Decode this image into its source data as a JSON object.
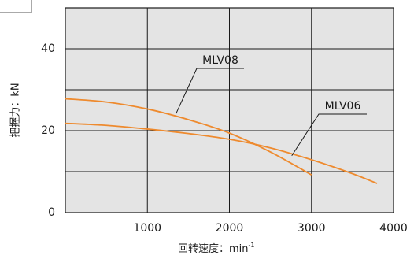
{
  "chart_data": {
    "type": "line",
    "xlabel": "回转速度：min",
    "xlabel_sup": "-1",
    "ylabel": "把握力：kN",
    "xlim": [
      0,
      4000
    ],
    "ylim": [
      0,
      50
    ],
    "x_ticks": [
      1000,
      2000,
      3000,
      4000
    ],
    "y_ticks": [
      0,
      20,
      40
    ],
    "grid": true,
    "plot_background": "#e4e4e4",
    "line_color": "#ee8a2e",
    "series": [
      {
        "name": "MLV08",
        "x": [
          0,
          500,
          1000,
          1500,
          2000,
          2500,
          3000
        ],
        "y": [
          27.8,
          27.0,
          25.3,
          22.7,
          19.4,
          14.8,
          9.2
        ]
      },
      {
        "name": "MLV06",
        "x": [
          0,
          500,
          1000,
          1500,
          2000,
          2500,
          3000,
          3500,
          3800
        ],
        "y": [
          21.8,
          21.3,
          20.4,
          19.3,
          17.9,
          15.8,
          12.9,
          9.5,
          7.1
        ]
      }
    ]
  }
}
